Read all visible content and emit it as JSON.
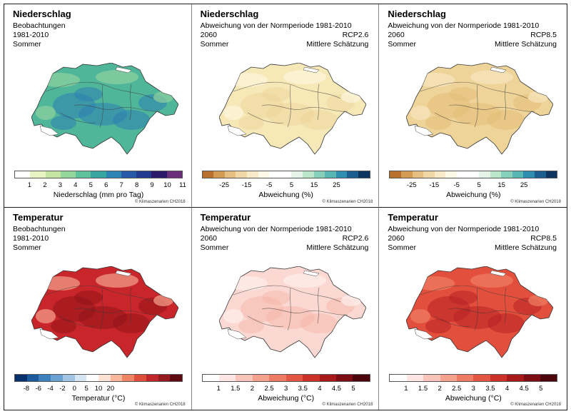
{
  "panels": [
    {
      "title": "Niederschlag",
      "left_lines": [
        "Beobachtungen",
        "1981-2010",
        "Sommer"
      ],
      "right_lines": [],
      "legend_colors": [
        "#ffffff",
        "#e8f3c4",
        "#c4e6a2",
        "#94d79a",
        "#5ec39c",
        "#3aa6a1",
        "#2d84b5",
        "#2659a8",
        "#213a8f",
        "#2b1a6a",
        "#6b2e7a"
      ],
      "ticks": [
        "1",
        "2",
        "3",
        "4",
        "5",
        "6",
        "7",
        "8",
        "9",
        "10",
        "11"
      ],
      "legend_unit": "Niederschlag  (mm pro Tag)",
      "copyright": "© Klimaszenarien CH2018"
    },
    {
      "title": "Niederschlag",
      "left_lines": [
        "Abweichung von der Normperiode 1981-2010",
        "2060",
        "Sommer"
      ],
      "right_lines": [
        "RCP2.6",
        "Mittlere Schätzung"
      ],
      "legend_colors": [
        "#b8702c",
        "#d49b52",
        "#e6be7f",
        "#f0d7a3",
        "#f8eac6",
        "#fdf8e7",
        "#ffffff",
        "#ffffff",
        "#e3f4e6",
        "#b9e5c8",
        "#86d0ba",
        "#58b6b3",
        "#2f8eb0",
        "#1a5f8f",
        "#0d3560"
      ],
      "ticks": [
        "-25",
        "-15",
        "-5",
        "5",
        "15",
        "25"
      ],
      "legend_unit": "Abweichung  (%)",
      "copyright": "© Klimaszenarien CH2018"
    },
    {
      "title": "Niederschlag",
      "left_lines": [
        "Abweichung von der Normperiode 1981-2010",
        "2060",
        "Sommer"
      ],
      "right_lines": [
        "RCP8.5",
        "Mittlere Schätzung"
      ],
      "legend_colors": [
        "#b8702c",
        "#d49b52",
        "#e6be7f",
        "#f0d7a3",
        "#f8eac6",
        "#fdf8e7",
        "#ffffff",
        "#ffffff",
        "#e3f4e6",
        "#b9e5c8",
        "#86d0ba",
        "#58b6b3",
        "#2f8eb0",
        "#1a5f8f",
        "#0d3560"
      ],
      "ticks": [
        "-25",
        "-15",
        "-5",
        "5",
        "15",
        "25"
      ],
      "legend_unit": "Abweichung  (%)",
      "copyright": "© Klimaszenarien CH2018"
    },
    {
      "title": "Temperatur",
      "left_lines": [
        "Beobachtungen",
        "1981-2010",
        "Sommer"
      ],
      "right_lines": [],
      "legend_colors": [
        "#08306b",
        "#1c5a9e",
        "#3c80bd",
        "#6aa3d1",
        "#a2c6e3",
        "#d6e6f3",
        "#ffffff",
        "#fde3d6",
        "#f9b89d",
        "#f08466",
        "#de4e3d",
        "#c0272d",
        "#941a20",
        "#5e0a12"
      ],
      "ticks": [
        "-8",
        "-6",
        "-4",
        "-2",
        "0",
        "5",
        "10",
        "20"
      ],
      "legend_unit": "Temperatur  (°C)",
      "copyright": "© Klimaszenarien CH2018"
    },
    {
      "title": "Temperatur",
      "left_lines": [
        "Abweichung von der Normperiode 1981-2010",
        "2060",
        "Sommer"
      ],
      "right_lines": [
        "RCP2.6",
        "Mittlere Schätzung"
      ],
      "legend_colors": [
        "#ffffff",
        "#fde6e3",
        "#f9c5bb",
        "#f4a190",
        "#ee7b66",
        "#e35644",
        "#cc3228",
        "#a8191c",
        "#7d0d14",
        "#4c050c"
      ],
      "ticks": [
        "1",
        "1.5",
        "2",
        "2.5",
        "3",
        "3.5",
        "4",
        "4.5",
        "5"
      ],
      "legend_unit": "Abweichung  (°C)",
      "copyright": "© Klimaszenarien CH2018"
    },
    {
      "title": "Temperatur",
      "left_lines": [
        "Abweichung von der Normperiode 1981-2010",
        "2060",
        "Sommer"
      ],
      "right_lines": [
        "RCP8.5",
        "Mittlere Schätzung"
      ],
      "legend_colors": [
        "#ffffff",
        "#fde6e3",
        "#f9c5bb",
        "#f4a190",
        "#ee7b66",
        "#e35644",
        "#cc3228",
        "#a8191c",
        "#7d0d14",
        "#4c050c"
      ],
      "ticks": [
        "1",
        "1.5",
        "2",
        "2.5",
        "3",
        "3.5",
        "4",
        "4.5",
        "5"
      ],
      "legend_unit": "Abweichung  (°C)",
      "copyright": "© Klimaszenarien CH2018"
    }
  ],
  "map_fills": [
    {
      "base": "#4fb69a",
      "blotch": "#2d7fb3",
      "light": "#8fd19c"
    },
    {
      "base": "#f7e8b8",
      "blotch": "#efd59a",
      "light": "#fdf6dc"
    },
    {
      "base": "#efd49a",
      "blotch": "#e3bd78",
      "light": "#f7e6bd"
    },
    {
      "base": "#c9262b",
      "blotch": "#8f1418",
      "light": "#f3a28c"
    },
    {
      "base": "#fbd9d2",
      "blotch": "#f6b8ab",
      "light": "#fdeeea"
    },
    {
      "base": "#e2503d",
      "blotch": "#b82124",
      "light": "#f07d63"
    }
  ]
}
